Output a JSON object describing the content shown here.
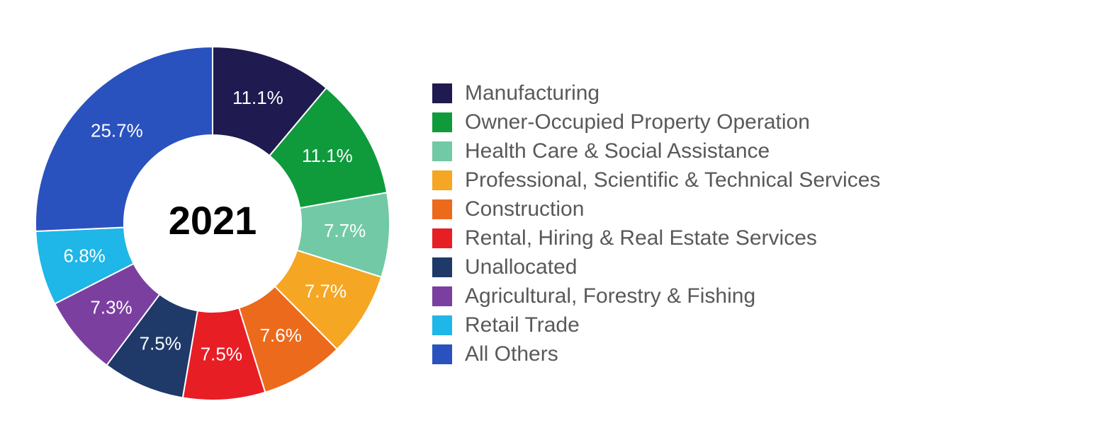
{
  "chart": {
    "type": "donut",
    "center_label": "2021",
    "center_label_fontsize": 56,
    "center_label_color": "#000000",
    "background_color": "#ffffff",
    "outer_radius": 250,
    "inner_radius": 125,
    "label_radius": 187,
    "slice_label_fontsize": 26,
    "slice_label_color": "#ffffff",
    "start_angle_deg": -90,
    "series": [
      {
        "label": "Manufacturing",
        "value": 11.1,
        "display": "11.1%",
        "color": "#1f1a4f"
      },
      {
        "label": "Owner-Occupied Property Operation",
        "value": 11.1,
        "display": "11.1%",
        "color": "#0f9b3c"
      },
      {
        "label": "Health Care & Social Assistance",
        "value": 7.7,
        "display": "7.7%",
        "color": "#72c9a5"
      },
      {
        "label": "Professional, Scientific & Technical Services",
        "value": 7.7,
        "display": "7.7%",
        "color": "#f5a623"
      },
      {
        "label": "Construction",
        "value": 7.6,
        "display": "7.6%",
        "color": "#ec6a1c"
      },
      {
        "label": "Rental, Hiring & Real Estate Services",
        "value": 7.5,
        "display": "7.5%",
        "color": "#e81e25"
      },
      {
        "label": "Unallocated",
        "value": 7.5,
        "display": "7.5%",
        "color": "#1f3a68"
      },
      {
        "label": "Agricultural, Forestry & Fishing",
        "value": 7.3,
        "display": "7.3%",
        "color": "#7b3fa0"
      },
      {
        "label": "Retail Trade",
        "value": 6.8,
        "display": "6.8%",
        "color": "#1fb6e8"
      },
      {
        "label": "All Others",
        "value": 25.7,
        "display": "25.7%",
        "color": "#2a52be"
      }
    ]
  },
  "legend": {
    "swatch_size": 28,
    "font_size": 30,
    "text_color": "#595959"
  }
}
